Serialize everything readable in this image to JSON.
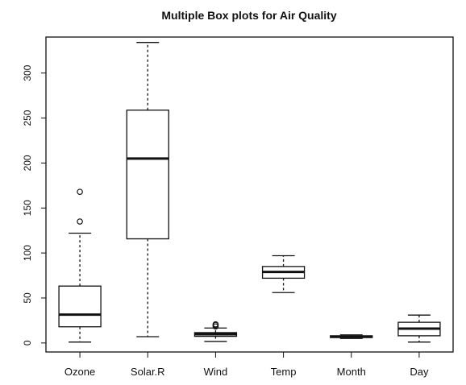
{
  "chart_data": {
    "type": "boxplot",
    "title": "Multiple Box plots for Air Quality",
    "xlabel": "",
    "ylabel": "",
    "ylim": [
      -10,
      340
    ],
    "yticks": [
      0,
      50,
      100,
      150,
      200,
      250,
      300
    ],
    "categories": [
      "Ozone",
      "Solar.R",
      "Wind",
      "Temp",
      "Month",
      "Day"
    ],
    "boxes": [
      {
        "name": "Ozone",
        "min": 1,
        "q1": 18,
        "median": 31.5,
        "q3": 63.25,
        "max": 122,
        "outliers": [
          135,
          168
        ]
      },
      {
        "name": "Solar.R",
        "min": 7,
        "q1": 115.75,
        "median": 205,
        "q3": 258.75,
        "max": 334,
        "outliers": []
      },
      {
        "name": "Wind",
        "min": 1.7,
        "q1": 7.4,
        "median": 9.7,
        "q3": 11.5,
        "max": 16.6,
        "outliers": [
          20.1,
          18.4,
          20.7
        ]
      },
      {
        "name": "Temp",
        "min": 56,
        "q1": 72,
        "median": 79,
        "q3": 85,
        "max": 97,
        "outliers": []
      },
      {
        "name": "Month",
        "min": 5,
        "q1": 6,
        "median": 7,
        "q3": 8,
        "max": 9,
        "outliers": []
      },
      {
        "name": "Day",
        "min": 1,
        "q1": 8,
        "median": 16,
        "q3": 23,
        "max": 31,
        "outliers": []
      }
    ],
    "grid": false,
    "legend": "none"
  }
}
